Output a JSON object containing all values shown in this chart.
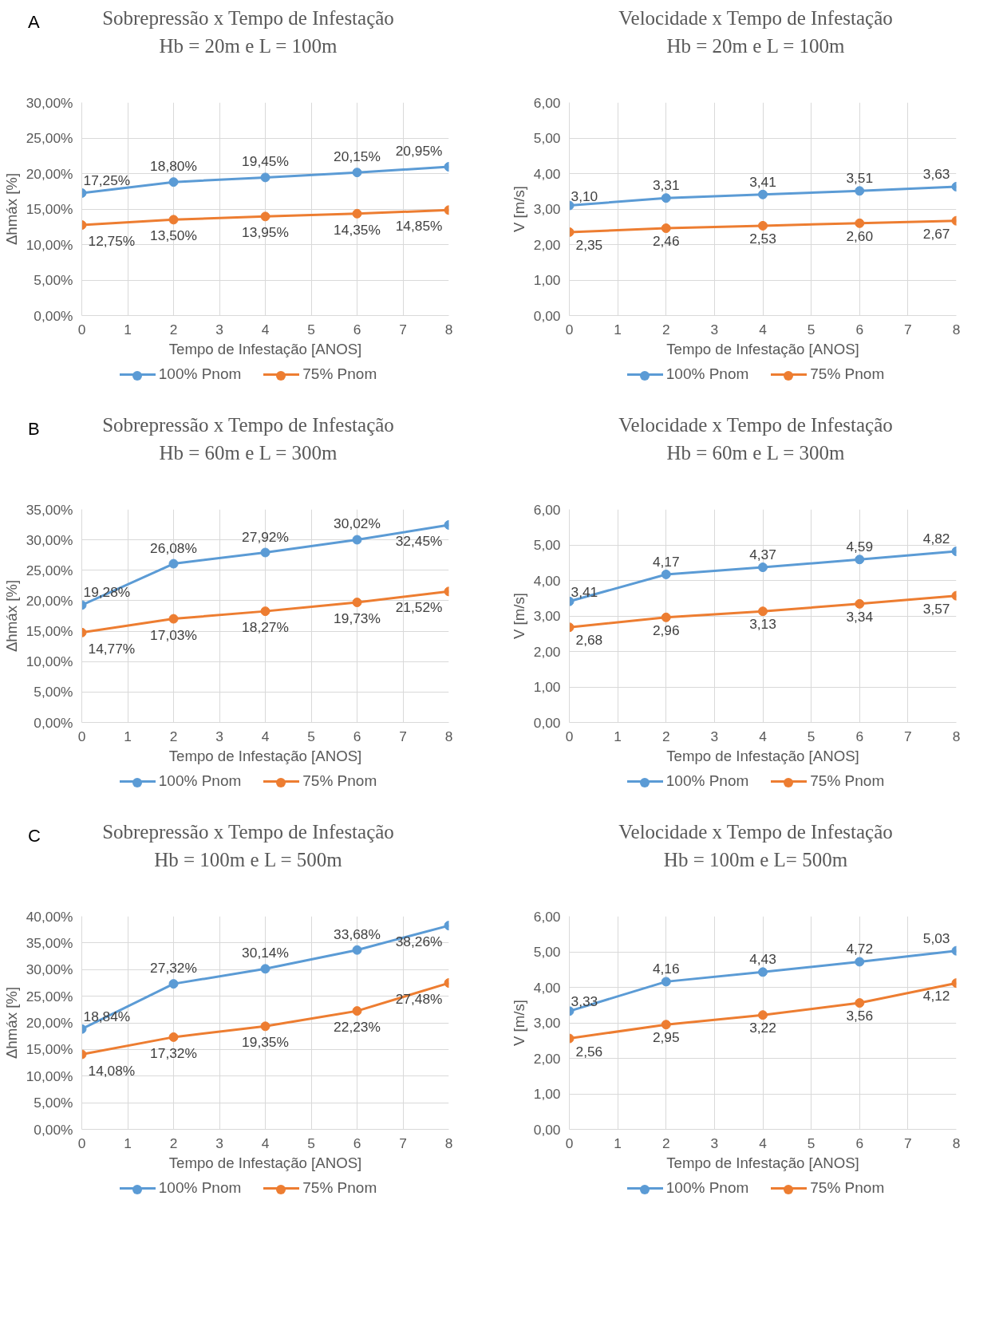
{
  "chart_data": [
    {
      "type": "line",
      "title": "Sobrepressão x Tempo de Infestação",
      "subtitle": "Hb = 20m e L = 100m",
      "annotations": [
        "A"
      ],
      "xlabel": "Tempo de Infestação [ANOS]",
      "ylabel": "Δhmáx [%]",
      "x": [
        0,
        2,
        4,
        6,
        8
      ],
      "xlim": [
        0,
        8
      ],
      "xticks": [
        0,
        1,
        2,
        3,
        4,
        5,
        6,
        7,
        8
      ],
      "ylim": [
        0,
        30
      ],
      "yticks": [
        {
          "value": 0,
          "label": "0,00%"
        },
        {
          "value": 5,
          "label": "5,00%"
        },
        {
          "value": 10,
          "label": "10,00%"
        },
        {
          "value": 15,
          "label": "15,00%"
        },
        {
          "value": 20,
          "label": "20,00%"
        },
        {
          "value": 25,
          "label": "25,00%"
        },
        {
          "value": 30,
          "label": "30,00%"
        }
      ],
      "grid": true,
      "legend": "bottom",
      "marker": "circle",
      "series": [
        {
          "name": "100% Pnom",
          "color": "#5b9bd5",
          "values": [
            17.25,
            18.8,
            19.45,
            20.15,
            20.95
          ],
          "value_labels": [
            "17,25%",
            "18,80%",
            "19,45%",
            "20,15%",
            "20,95%"
          ]
        },
        {
          "name": "75% Pnom",
          "color": "#ed7d31",
          "values": [
            12.75,
            13.5,
            13.95,
            14.35,
            14.85
          ],
          "value_labels": [
            "12,75%",
            "13,50%",
            "13,95%",
            "14,35%",
            "14,85%"
          ]
        }
      ]
    },
    {
      "type": "line",
      "title": "Velocidade x Tempo de Infestação",
      "subtitle": "Hb = 20m e L = 100m",
      "xlabel": "Tempo de Infestação [ANOS]",
      "ylabel": "V [m/s]",
      "x": [
        0,
        2,
        4,
        6,
        8
      ],
      "xlim": [
        0,
        8
      ],
      "xticks": [
        0,
        1,
        2,
        3,
        4,
        5,
        6,
        7,
        8
      ],
      "ylim": [
        0,
        6
      ],
      "yticks": [
        {
          "value": 0,
          "label": "0,00"
        },
        {
          "value": 1,
          "label": "1,00"
        },
        {
          "value": 2,
          "label": "2,00"
        },
        {
          "value": 3,
          "label": "3,00"
        },
        {
          "value": 4,
          "label": "4,00"
        },
        {
          "value": 5,
          "label": "5,00"
        },
        {
          "value": 6,
          "label": "6,00"
        }
      ],
      "grid": true,
      "legend": "bottom",
      "marker": "circle",
      "series": [
        {
          "name": "100% Pnom",
          "color": "#5b9bd5",
          "values": [
            3.1,
            3.31,
            3.41,
            3.51,
            3.63
          ],
          "value_labels": [
            "3,10",
            "3,31",
            "3,41",
            "3,51",
            "3,63"
          ]
        },
        {
          "name": "75% Pnom",
          "color": "#ed7d31",
          "values": [
            2.35,
            2.46,
            2.53,
            2.6,
            2.67
          ],
          "value_labels": [
            "2,35",
            "2,46",
            "2,53",
            "2,60",
            "2,67"
          ]
        }
      ]
    },
    {
      "type": "line",
      "title": "Sobrepressão x Tempo de Infestação",
      "subtitle": "Hb = 60m e L = 300m",
      "annotations": [
        "B"
      ],
      "xlabel": "Tempo de Infestação [ANOS]",
      "ylabel": "Δhmáx [%]",
      "x": [
        0,
        2,
        4,
        6,
        8
      ],
      "xlim": [
        0,
        8
      ],
      "xticks": [
        0,
        1,
        2,
        3,
        4,
        5,
        6,
        7,
        8
      ],
      "ylim": [
        0,
        35
      ],
      "yticks": [
        {
          "value": 0,
          "label": "0,00%"
        },
        {
          "value": 5,
          "label": "5,00%"
        },
        {
          "value": 10,
          "label": "10,00%"
        },
        {
          "value": 15,
          "label": "15,00%"
        },
        {
          "value": 20,
          "label": "20,00%"
        },
        {
          "value": 25,
          "label": "25,00%"
        },
        {
          "value": 30,
          "label": "30,00%"
        },
        {
          "value": 35,
          "label": "35,00%"
        }
      ],
      "grid": true,
      "legend": "bottom",
      "marker": "circle",
      "series": [
        {
          "name": "100% Pnom",
          "color": "#5b9bd5",
          "values": [
            19.28,
            26.08,
            27.92,
            30.02,
            32.45
          ],
          "value_labels": [
            "19,28%",
            "26,08%",
            "27,92%",
            "30,02%",
            "32,45%"
          ]
        },
        {
          "name": "75% Pnom",
          "color": "#ed7d31",
          "values": [
            14.77,
            17.03,
            18.27,
            19.73,
            21.52
          ],
          "value_labels": [
            "14,77%",
            "17,03%",
            "18,27%",
            "19,73%",
            "21,52%"
          ]
        }
      ]
    },
    {
      "type": "line",
      "title": "Velocidade x Tempo de Infestação",
      "subtitle": "Hb = 60m e L = 300m",
      "xlabel": "Tempo de Infestação [ANOS]",
      "ylabel": "V [m/s]",
      "x": [
        0,
        2,
        4,
        6,
        8
      ],
      "xlim": [
        0,
        8
      ],
      "xticks": [
        0,
        1,
        2,
        3,
        4,
        5,
        6,
        7,
        8
      ],
      "ylim": [
        0,
        6
      ],
      "yticks": [
        {
          "value": 0,
          "label": "0,00"
        },
        {
          "value": 1,
          "label": "1,00"
        },
        {
          "value": 2,
          "label": "2,00"
        },
        {
          "value": 3,
          "label": "3,00"
        },
        {
          "value": 4,
          "label": "4,00"
        },
        {
          "value": 5,
          "label": "5,00"
        },
        {
          "value": 6,
          "label": "6,00"
        }
      ],
      "grid": true,
      "legend": "bottom",
      "marker": "circle",
      "series": [
        {
          "name": "100% Pnom",
          "color": "#5b9bd5",
          "values": [
            3.41,
            4.17,
            4.37,
            4.59,
            4.82
          ],
          "value_labels": [
            "3,41",
            "4,17",
            "4,37",
            "4,59",
            "4,82"
          ]
        },
        {
          "name": "75% Pnom",
          "color": "#ed7d31",
          "values": [
            2.68,
            2.96,
            3.13,
            3.34,
            3.57
          ],
          "value_labels": [
            "2,68",
            "2,96",
            "3,13",
            "3,34",
            "3,57"
          ]
        }
      ]
    },
    {
      "type": "line",
      "title": "Sobrepressão x Tempo de Infestação",
      "subtitle": "Hb = 100m e L = 500m",
      "annotations": [
        "C"
      ],
      "xlabel": "Tempo de Infestação [ANOS]",
      "ylabel": "Δhmáx [%]",
      "x": [
        0,
        2,
        4,
        6,
        8
      ],
      "xlim": [
        0,
        8
      ],
      "xticks": [
        0,
        1,
        2,
        3,
        4,
        5,
        6,
        7,
        8
      ],
      "ylim": [
        0,
        40
      ],
      "yticks": [
        {
          "value": 0,
          "label": "0,00%"
        },
        {
          "value": 5,
          "label": "5,00%"
        },
        {
          "value": 10,
          "label": "10,00%"
        },
        {
          "value": 15,
          "label": "15,00%"
        },
        {
          "value": 20,
          "label": "20,00%"
        },
        {
          "value": 25,
          "label": "25,00%"
        },
        {
          "value": 30,
          "label": "30,00%"
        },
        {
          "value": 35,
          "label": "35,00%"
        },
        {
          "value": 40,
          "label": "40,00%"
        }
      ],
      "grid": true,
      "legend": "bottom",
      "marker": "circle",
      "series": [
        {
          "name": "100% Pnom",
          "color": "#5b9bd5",
          "values": [
            18.84,
            27.32,
            30.14,
            33.68,
            38.26
          ],
          "value_labels": [
            "18,84%",
            "27,32%",
            "30,14%",
            "33,68%",
            "38,26%"
          ]
        },
        {
          "name": "75% Pnom",
          "color": "#ed7d31",
          "values": [
            14.08,
            17.32,
            19.35,
            22.23,
            27.48
          ],
          "value_labels": [
            "14,08%",
            "17,32%",
            "19,35%",
            "22,23%",
            "27,48%"
          ]
        }
      ]
    },
    {
      "type": "line",
      "title": "Velocidade x Tempo de Infestação",
      "subtitle": "Hb = 100m e L= 500m",
      "xlabel": "Tempo de Infestação [ANOS]",
      "ylabel": "V [m/s]",
      "x": [
        0,
        2,
        4,
        6,
        8
      ],
      "xlim": [
        0,
        8
      ],
      "xticks": [
        0,
        1,
        2,
        3,
        4,
        5,
        6,
        7,
        8
      ],
      "ylim": [
        0,
        6
      ],
      "yticks": [
        {
          "value": 0,
          "label": "0,00"
        },
        {
          "value": 1,
          "label": "1,00"
        },
        {
          "value": 2,
          "label": "2,00"
        },
        {
          "value": 3,
          "label": "3,00"
        },
        {
          "value": 4,
          "label": "4,00"
        },
        {
          "value": 5,
          "label": "5,00"
        },
        {
          "value": 6,
          "label": "6,00"
        }
      ],
      "grid": true,
      "legend": "bottom",
      "marker": "circle",
      "series": [
        {
          "name": "100% Pnom",
          "color": "#5b9bd5",
          "values": [
            3.33,
            4.16,
            4.43,
            4.72,
            5.03
          ],
          "value_labels": [
            "3,33",
            "4,16",
            "4,43",
            "4,72",
            "5,03"
          ]
        },
        {
          "name": "75% Pnom",
          "color": "#ed7d31",
          "values": [
            2.56,
            2.95,
            3.22,
            3.56,
            4.12
          ],
          "value_labels": [
            "2,56",
            "2,95",
            "3,22",
            "3,56",
            "4,12"
          ]
        }
      ]
    }
  ]
}
